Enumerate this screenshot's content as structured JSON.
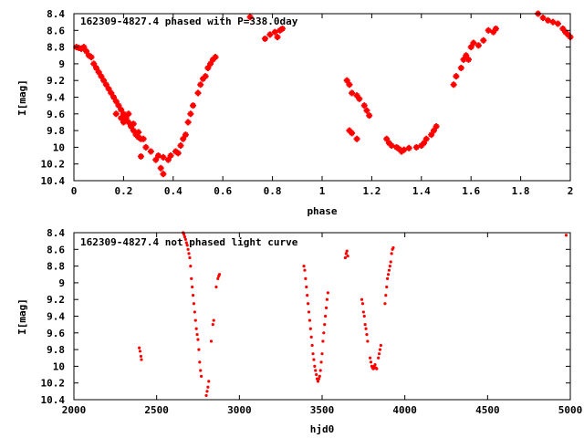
{
  "chart_data": [
    {
      "type": "scatter",
      "title": "162309-4827.4 phased with P=338.0day",
      "xlabel": "phase",
      "ylabel": "I[mag]",
      "xlim": [
        0,
        2
      ],
      "ylim": [
        10.4,
        8.4
      ],
      "y_inverted": true,
      "grid": false,
      "marker_color": "#ff0000",
      "x_ticks": [
        "0",
        "0.2",
        "0.4",
        "0.6",
        "0.8",
        "1",
        "1.2",
        "1.4",
        "1.6",
        "1.8",
        "2"
      ],
      "y_ticks": [
        "8.4",
        "8.6",
        "8.8",
        "9",
        "9.2",
        "9.4",
        "9.6",
        "9.8",
        "10",
        "10.2",
        "10.4"
      ],
      "series": [
        {
          "points": [
            [
              0.01,
              8.8
            ],
            [
              0.02,
              8.81
            ],
            [
              0.03,
              8.82
            ],
            [
              0.04,
              8.8
            ],
            [
              0.05,
              8.85
            ],
            [
              0.06,
              8.9
            ],
            [
              0.07,
              8.92
            ],
            [
              0.08,
              9.0
            ],
            [
              0.09,
              9.05
            ],
            [
              0.1,
              9.1
            ],
            [
              0.11,
              9.15
            ],
            [
              0.12,
              9.2
            ],
            [
              0.13,
              9.25
            ],
            [
              0.14,
              9.3
            ],
            [
              0.15,
              9.35
            ],
            [
              0.16,
              9.4
            ],
            [
              0.17,
              9.45
            ],
            [
              0.18,
              9.5
            ],
            [
              0.19,
              9.55
            ],
            [
              0.2,
              9.6
            ],
            [
              0.21,
              9.65
            ],
            [
              0.22,
              9.7
            ],
            [
              0.23,
              9.75
            ],
            [
              0.24,
              9.8
            ],
            [
              0.25,
              9.85
            ],
            [
              0.26,
              9.88
            ],
            [
              0.27,
              9.9
            ],
            [
              0.2,
              9.7
            ],
            [
              0.17,
              9.6
            ],
            [
              0.19,
              9.65
            ],
            [
              0.22,
              9.6
            ],
            [
              0.24,
              9.72
            ],
            [
              0.26,
              9.82
            ],
            [
              0.28,
              9.9
            ],
            [
              0.29,
              10.0
            ],
            [
              0.31,
              10.05
            ],
            [
              0.33,
              10.15
            ],
            [
              0.35,
              10.25
            ],
            [
              0.36,
              10.32
            ],
            [
              0.38,
              10.15
            ],
            [
              0.39,
              10.1
            ],
            [
              0.41,
              10.05
            ],
            [
              0.43,
              9.98
            ],
            [
              0.44,
              9.9
            ],
            [
              0.46,
              9.7
            ],
            [
              0.48,
              9.5
            ],
            [
              0.5,
              9.35
            ],
            [
              0.51,
              9.25
            ],
            [
              0.53,
              9.15
            ],
            [
              0.55,
              9.0
            ],
            [
              0.56,
              8.95
            ],
            [
              0.57,
              8.92
            ],
            [
              0.27,
              10.11
            ],
            [
              0.34,
              10.1
            ],
            [
              0.36,
              10.12
            ],
            [
              0.42,
              10.07
            ],
            [
              0.45,
              9.85
            ],
            [
              0.47,
              9.6
            ],
            [
              0.52,
              9.18
            ],
            [
              0.54,
              9.05
            ],
            [
              0.71,
              8.44
            ],
            [
              0.77,
              8.7
            ],
            [
              0.79,
              8.65
            ],
            [
              0.81,
              8.62
            ],
            [
              0.83,
              8.6
            ],
            [
              0.84,
              8.58
            ],
            [
              0.82,
              8.68
            ],
            [
              1.1,
              9.2
            ],
            [
              1.11,
              9.25
            ],
            [
              1.12,
              9.35
            ],
            [
              1.14,
              9.38
            ],
            [
              1.15,
              9.42
            ],
            [
              1.17,
              9.5
            ],
            [
              1.18,
              9.56
            ],
            [
              1.19,
              9.62
            ],
            [
              1.11,
              9.8
            ],
            [
              1.12,
              9.83
            ],
            [
              1.14,
              9.9
            ],
            [
              1.26,
              9.9
            ],
            [
              1.27,
              9.95
            ],
            [
              1.28,
              9.98
            ],
            [
              1.3,
              10.0
            ],
            [
              1.31,
              10.02
            ],
            [
              1.32,
              10.05
            ],
            [
              1.33,
              10.03
            ],
            [
              1.35,
              10.01
            ],
            [
              1.38,
              10.0
            ],
            [
              1.4,
              9.98
            ],
            [
              1.41,
              9.95
            ],
            [
              1.42,
              9.9
            ],
            [
              1.44,
              9.85
            ],
            [
              1.45,
              9.8
            ],
            [
              1.46,
              9.75
            ],
            [
              1.53,
              9.25
            ],
            [
              1.54,
              9.15
            ],
            [
              1.56,
              9.05
            ],
            [
              1.57,
              8.95
            ],
            [
              1.58,
              8.9
            ],
            [
              1.59,
              8.95
            ],
            [
              1.6,
              8.8
            ],
            [
              1.61,
              8.75
            ],
            [
              1.63,
              8.78
            ],
            [
              1.65,
              8.72
            ],
            [
              1.67,
              8.6
            ],
            [
              1.69,
              8.62
            ],
            [
              1.7,
              8.58
            ],
            [
              1.87,
              8.4
            ],
            [
              1.89,
              8.45
            ],
            [
              1.91,
              8.48
            ],
            [
              1.93,
              8.5
            ],
            [
              1.95,
              8.52
            ],
            [
              1.97,
              8.58
            ],
            [
              1.98,
              8.62
            ],
            [
              1.99,
              8.65
            ],
            [
              2.0,
              8.68
            ]
          ]
        }
      ]
    },
    {
      "type": "scatter",
      "title": "162309-4827.4 not phased light curve",
      "xlabel": "hjd0",
      "ylabel": "I[mag]",
      "xlim": [
        2000,
        5000
      ],
      "ylim": [
        10.4,
        8.4
      ],
      "y_inverted": true,
      "grid": false,
      "marker_color": "#ff0000",
      "x_ticks": [
        "2000",
        "2500",
        "3000",
        "3500",
        "4000",
        "4500",
        "5000"
      ],
      "y_ticks": [
        "8.4",
        "8.6",
        "8.8",
        "9",
        "9.2",
        "9.4",
        "9.6",
        "9.8",
        "10",
        "10.2",
        "10.4"
      ],
      "series": [
        {
          "points": [
            [
              2395,
              9.78
            ],
            [
              2400,
              9.82
            ],
            [
              2405,
              9.88
            ],
            [
              2408,
              9.92
            ],
            [
              2660,
              8.4
            ],
            [
              2665,
              8.42
            ],
            [
              2670,
              8.45
            ],
            [
              2675,
              8.48
            ],
            [
              2680,
              8.52
            ],
            [
              2685,
              8.55
            ],
            [
              2690,
              8.6
            ],
            [
              2695,
              8.65
            ],
            [
              2700,
              8.7
            ],
            [
              2705,
              8.8
            ],
            [
              2710,
              8.95
            ],
            [
              2715,
              9.05
            ],
            [
              2720,
              9.15
            ],
            [
              2725,
              9.25
            ],
            [
              2730,
              9.35
            ],
            [
              2735,
              9.45
            ],
            [
              2740,
              9.55
            ],
            [
              2745,
              9.62
            ],
            [
              2750,
              9.68
            ],
            [
              2755,
              9.8
            ],
            [
              2760,
              9.95
            ],
            [
              2765,
              10.05
            ],
            [
              2770,
              10.12
            ],
            [
              2800,
              10.35
            ],
            [
              2805,
              10.3
            ],
            [
              2810,
              10.25
            ],
            [
              2815,
              10.18
            ],
            [
              2830,
              9.7
            ],
            [
              2840,
              9.5
            ],
            [
              2845,
              9.45
            ],
            [
              2860,
              9.05
            ],
            [
              2870,
              8.95
            ],
            [
              2875,
              8.92
            ],
            [
              2880,
              8.9
            ],
            [
              3390,
              8.8
            ],
            [
              3395,
              8.85
            ],
            [
              3400,
              8.95
            ],
            [
              3405,
              9.05
            ],
            [
              3410,
              9.15
            ],
            [
              3415,
              9.25
            ],
            [
              3420,
              9.35
            ],
            [
              3425,
              9.45
            ],
            [
              3430,
              9.55
            ],
            [
              3435,
              9.65
            ],
            [
              3440,
              9.75
            ],
            [
              3445,
              9.85
            ],
            [
              3450,
              9.92
            ],
            [
              3455,
              10.0
            ],
            [
              3460,
              10.05
            ],
            [
              3465,
              10.1
            ],
            [
              3470,
              10.15
            ],
            [
              3475,
              10.18
            ],
            [
              3480,
              10.15
            ],
            [
              3485,
              10.12
            ],
            [
              3490,
              10.05
            ],
            [
              3495,
              9.95
            ],
            [
              3500,
              9.85
            ],
            [
              3505,
              9.7
            ],
            [
              3510,
              9.6
            ],
            [
              3515,
              9.5
            ],
            [
              3520,
              9.4
            ],
            [
              3525,
              9.3
            ],
            [
              3530,
              9.2
            ],
            [
              3535,
              9.12
            ],
            [
              3640,
              8.7
            ],
            [
              3645,
              8.65
            ],
            [
              3650,
              8.62
            ],
            [
              3655,
              8.68
            ],
            [
              3740,
              9.2
            ],
            [
              3745,
              9.25
            ],
            [
              3750,
              9.35
            ],
            [
              3755,
              9.4
            ],
            [
              3760,
              9.5
            ],
            [
              3765,
              9.55
            ],
            [
              3770,
              9.62
            ],
            [
              3775,
              9.7
            ],
            [
              3790,
              9.9
            ],
            [
              3795,
              9.95
            ],
            [
              3800,
              10.0
            ],
            [
              3805,
              10.02
            ],
            [
              3810,
              10.03
            ],
            [
              3815,
              10.0
            ],
            [
              3820,
              9.98
            ],
            [
              3825,
              10.02
            ],
            [
              3830,
              10.03
            ],
            [
              3840,
              9.9
            ],
            [
              3845,
              9.85
            ],
            [
              3850,
              9.8
            ],
            [
              3855,
              9.75
            ],
            [
              3880,
              9.25
            ],
            [
              3885,
              9.15
            ],
            [
              3890,
              9.05
            ],
            [
              3895,
              8.95
            ],
            [
              3900,
              8.9
            ],
            [
              3905,
              8.85
            ],
            [
              3910,
              8.8
            ],
            [
              3915,
              8.75
            ],
            [
              3920,
              8.65
            ],
            [
              3925,
              8.6
            ],
            [
              3930,
              8.58
            ],
            [
              4975,
              8.43
            ]
          ]
        }
      ]
    }
  ]
}
